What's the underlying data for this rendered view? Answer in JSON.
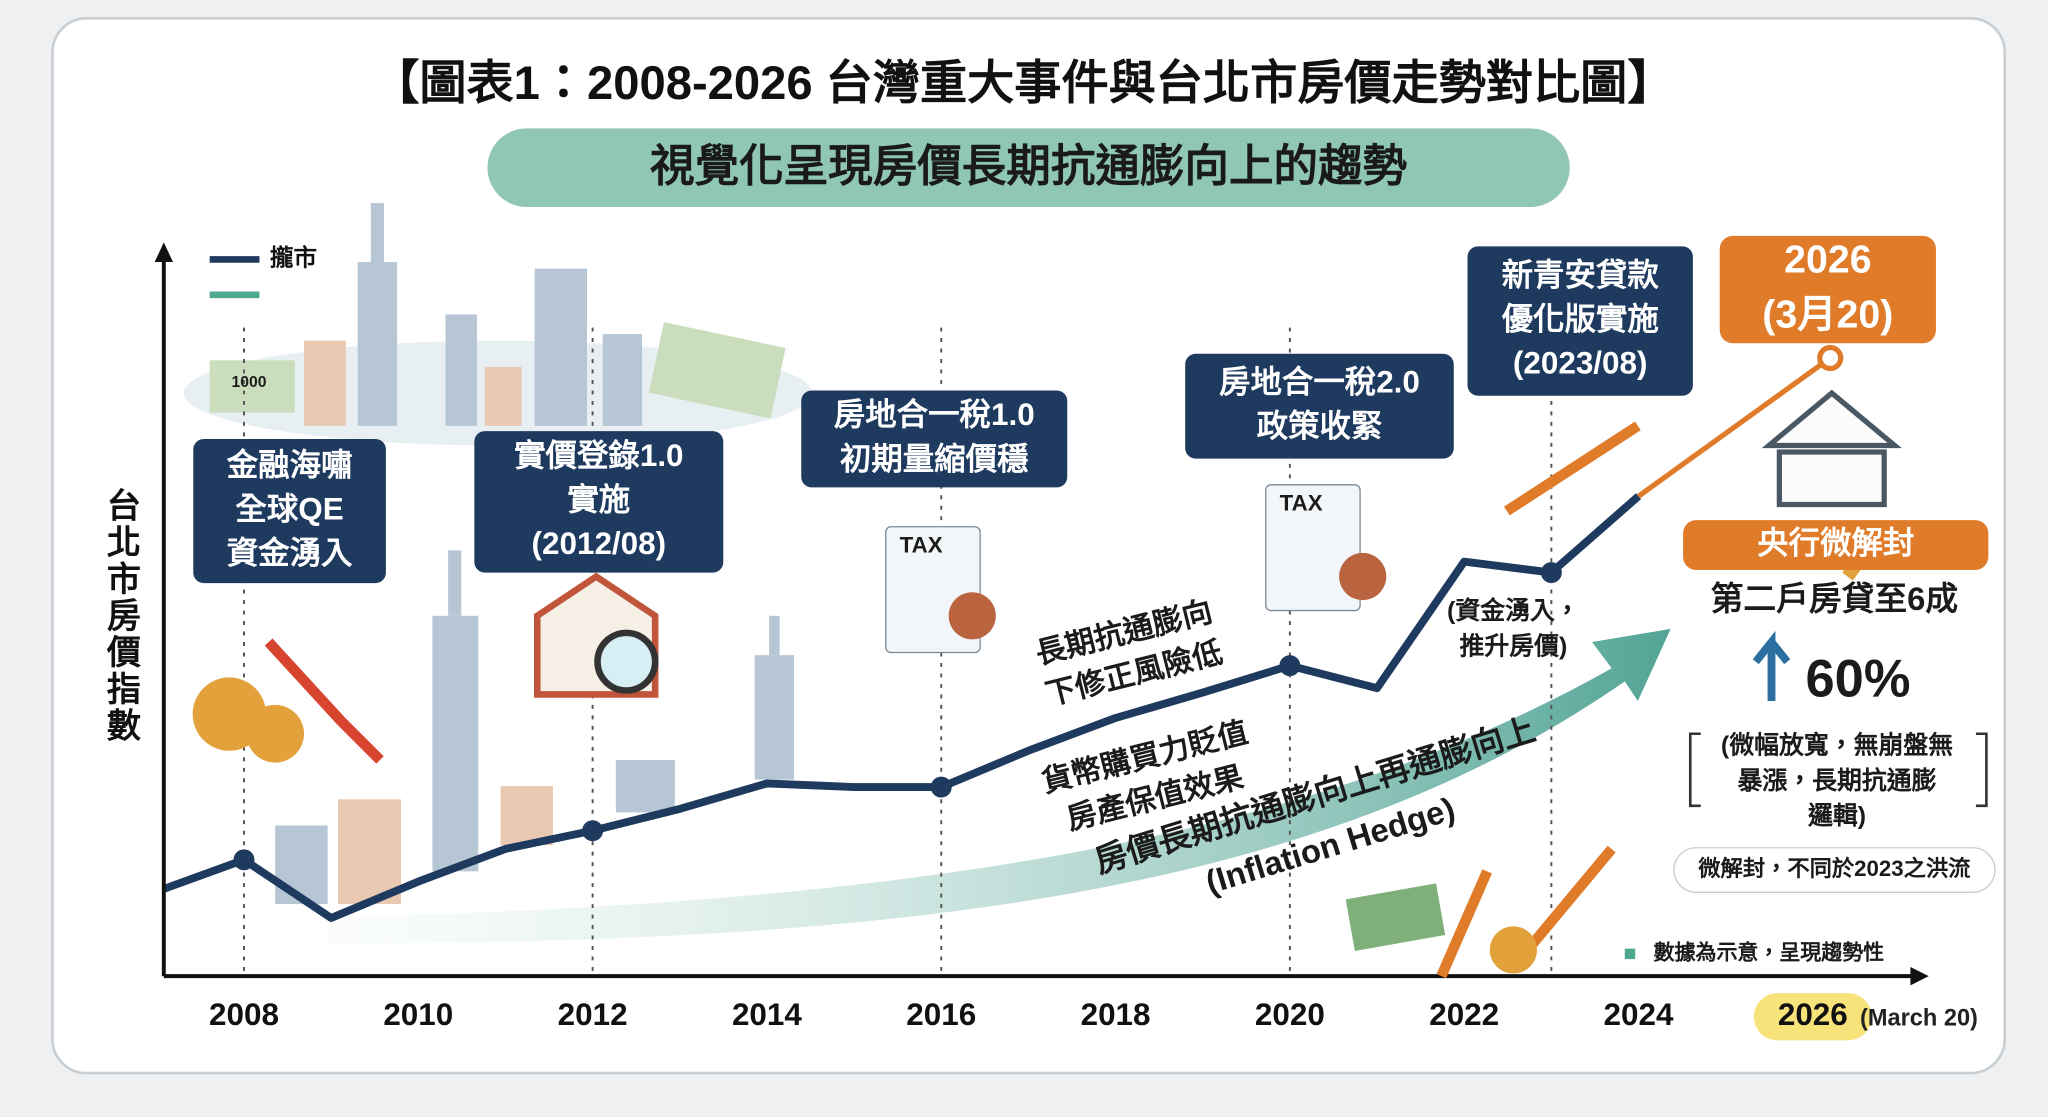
{
  "chart_data": {
    "type": "line",
    "title": "【圖表1：2008-2026 台灣重大事件與台北市房價走勢對比圖】",
    "subtitle": "視覺化呈現房價長期抗通膨向上的趨勢",
    "y_label": "台北市房價指數",
    "legend_position": "top-left",
    "x": [
      2007.08,
      2008,
      2009,
      2010,
      2011,
      2012,
      2013,
      2014,
      2015,
      2016,
      2017,
      2018,
      2019,
      2020,
      2021,
      2022,
      2023,
      2024,
      2026.2
    ],
    "series": [
      {
        "name": "攏市",
        "color": "#1f3a5f",
        "values": [
          12,
          16,
          8,
          13,
          17.5,
          20,
          23,
          26.5,
          26,
          26,
          31,
          35.5,
          39,
          42.7,
          39.6,
          57,
          55.5,
          66,
          null
        ]
      },
      {
        "color": "#e07b2a",
        "values": [
          null,
          null,
          null,
          null,
          null,
          null,
          null,
          null,
          null,
          null,
          null,
          null,
          null,
          null,
          null,
          null,
          null,
          66,
          85
        ]
      }
    ],
    "event_x": [
      2008,
      2012,
      2016,
      2020,
      2023
    ],
    "xlim": [
      2007.08,
      2027.3
    ],
    "ylim": [
      0,
      100
    ],
    "xticks": [
      2008,
      2010,
      2012,
      2014,
      2016,
      2018,
      2020,
      2022,
      2024,
      2026
    ],
    "last_xtick_note": "(March 20)",
    "annotations": [
      {
        "lines": [
          "金融海嘯",
          "全球QE",
          "資金湧入"
        ]
      },
      {
        "lines": [
          "實價登錄1.0",
          "實施",
          "(2012/08)"
        ]
      },
      {
        "lines": [
          "房地合一稅1.0",
          "初期量縮價穩"
        ]
      },
      {
        "lines": [
          "房地合一稅2.0",
          "政策收緊"
        ]
      },
      {
        "lines": [
          "新青安貸款",
          "優化版實施",
          "(2023/08)"
        ]
      },
      {
        "lines": [
          "2026",
          "(3月20)"
        ]
      },
      {
        "lines": [
          "央行微解封"
        ]
      },
      {
        "lines": [
          "第二戶房貸至6成"
        ]
      },
      {
        "lines": [
          "60%"
        ]
      },
      {
        "lines": [
          "(微幅放寬，無崩盤無",
          "暴漲，長期抗通膨",
          "邏輯)"
        ]
      },
      {
        "lines": [
          "微解封，不同於2023之洪流"
        ]
      },
      {
        "lines": [
          "(資金湧入，",
          "推升房價)"
        ]
      },
      {
        "lines": [
          "長期抗通膨向",
          "下修正風險低"
        ]
      },
      {
        "lines": [
          "貨幣購買力貶值",
          "房產保值效果"
        ]
      },
      {
        "lines": [
          "房價長期抗通膨向上再通膨向上",
          "(Inflation Hedge)"
        ]
      },
      {
        "lines": [
          "數據為示意，呈現趨勢性"
        ]
      },
      {
        "lines": [
          "TAX"
        ]
      },
      {
        "lines": [
          "TAX"
        ]
      },
      {
        "lines": [
          "1000"
        ]
      }
    ]
  }
}
